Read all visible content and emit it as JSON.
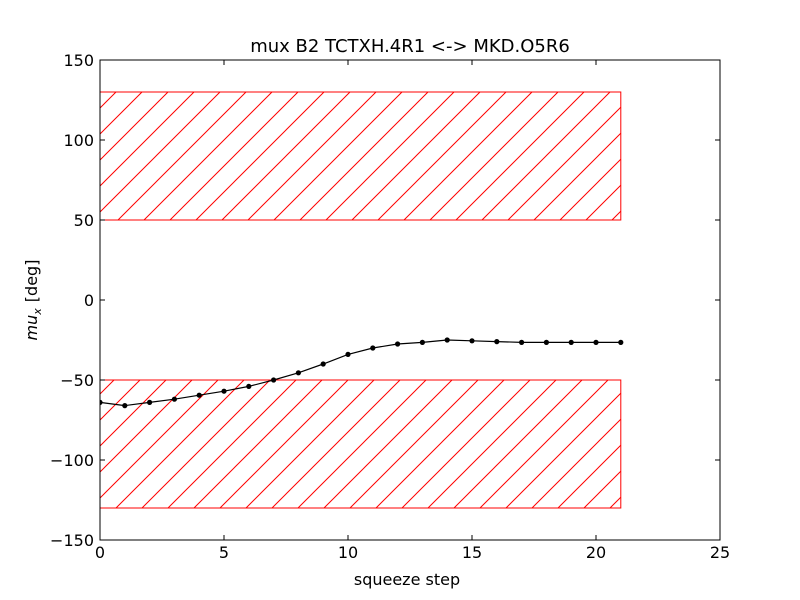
{
  "chart_data": {
    "type": "line",
    "title": "mux B2 TCTXH.4R1 <-> MKD.O5R6",
    "xlabel": "squeeze step",
    "ylabel_var": "mu",
    "ylabel_sub": "x",
    "ylabel_unit": "[deg]",
    "xlim": [
      0,
      25
    ],
    "ylim": [
      -150,
      150
    ],
    "xticks": [
      0,
      5,
      10,
      15,
      20,
      25
    ],
    "yticks": [
      -150,
      -100,
      -50,
      0,
      50,
      100,
      150
    ],
    "xtick_labels": [
      "0",
      "5",
      "10",
      "15",
      "20",
      "25"
    ],
    "ytick_labels": [
      "−150",
      "−100",
      "−50",
      "0",
      "50",
      "100",
      "150"
    ],
    "grid": false,
    "series": [
      {
        "color": "#000000",
        "marker": "dot",
        "x": [
          0,
          1,
          2,
          3,
          4,
          5,
          6,
          7,
          8,
          9,
          10,
          11,
          12,
          13,
          14,
          15,
          16,
          17,
          18,
          19,
          20,
          21
        ],
        "y": [
          -64,
          -66,
          -64,
          -62,
          -59.5,
          -57,
          -54,
          -50,
          -45.5,
          -40,
          -34,
          -30,
          -27.5,
          -26.5,
          -25,
          -25.5,
          -26,
          -26.5,
          -26.5,
          -26.5,
          -26.5,
          -26.5
        ]
      }
    ],
    "bands": [
      {
        "x": [
          0,
          21
        ],
        "y": [
          50,
          130
        ],
        "color": "#ff0000",
        "hatch": "diagonal"
      },
      {
        "x": [
          0,
          21
        ],
        "y": [
          -130,
          -50
        ],
        "color": "#ff0000",
        "hatch": "diagonal"
      }
    ]
  }
}
